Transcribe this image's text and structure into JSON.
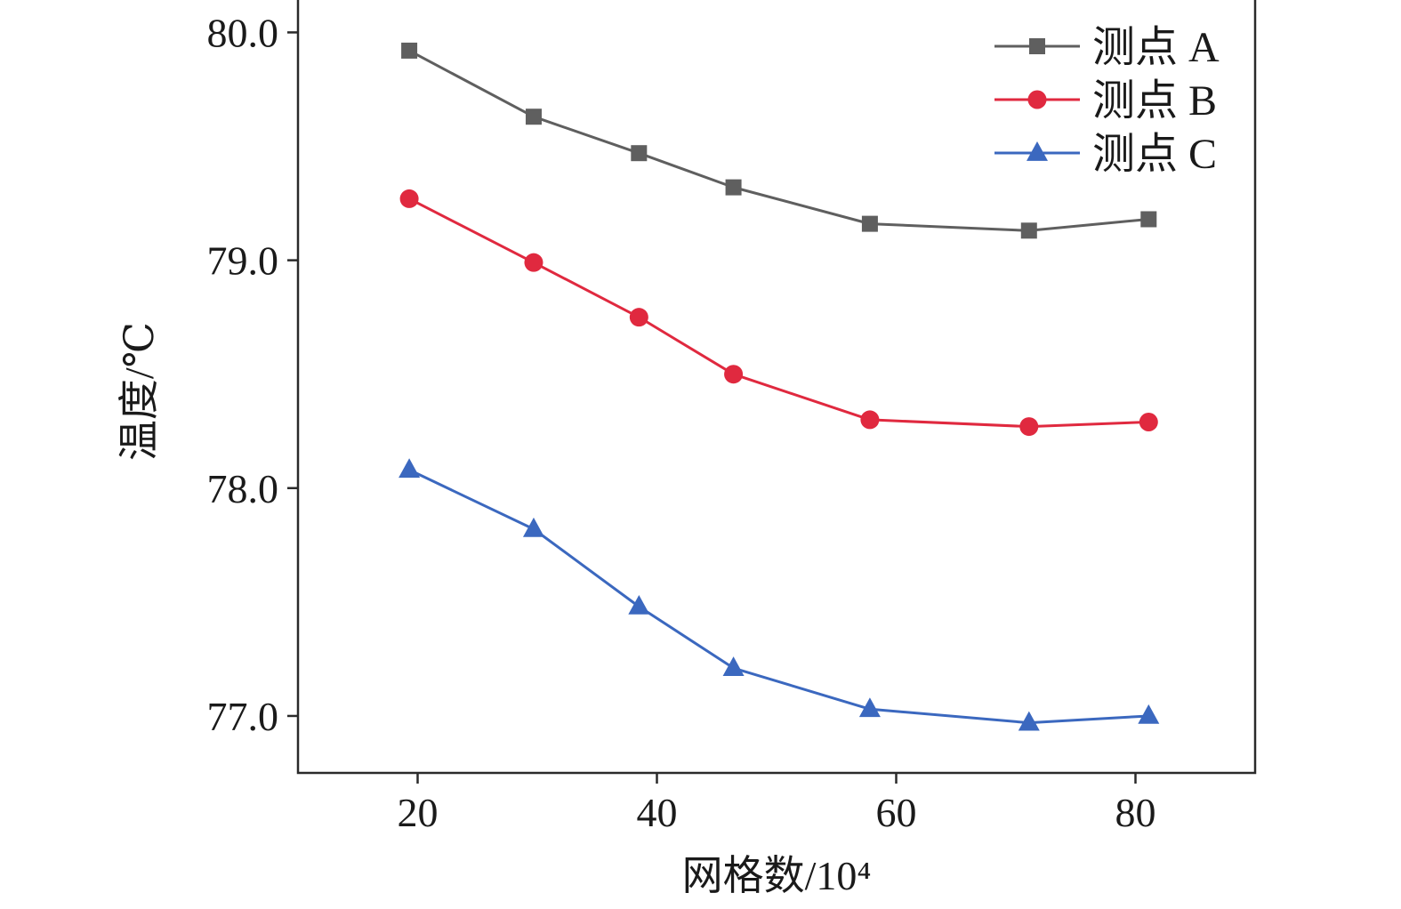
{
  "chart_data": {
    "type": "line",
    "title": "",
    "xlabel": "网格数/10⁴",
    "ylabel": "温度/℃",
    "xlim": [
      10,
      90
    ],
    "ylim": [
      76.75,
      80.15
    ],
    "xticks": [
      20,
      40,
      60,
      80
    ],
    "xtick_labels": [
      "20",
      "40",
      "60",
      "80"
    ],
    "yticks": [
      77,
      78,
      79,
      80
    ],
    "ytick_labels": [
      "77.0",
      "78.0",
      "79.0",
      "80.0"
    ],
    "grid": false,
    "legend_position": "top-right",
    "x": [
      19.3,
      29.7,
      38.5,
      46.4,
      57.8,
      71.1,
      81.1
    ],
    "series": [
      {
        "name": "测点 A",
        "marker": "square",
        "color": "#5f5f5f",
        "values": [
          79.92,
          79.63,
          79.47,
          79.32,
          79.16,
          79.13,
          79.18
        ]
      },
      {
        "name": "测点 B",
        "marker": "circle",
        "color": "#e0293f",
        "values": [
          79.27,
          78.99,
          78.75,
          78.5,
          78.3,
          78.27,
          78.29
        ]
      },
      {
        "name": "测点 C",
        "marker": "triangle",
        "color": "#3b68bf",
        "values": [
          78.08,
          77.82,
          77.48,
          77.21,
          77.03,
          76.97,
          77.0
        ]
      }
    ]
  }
}
